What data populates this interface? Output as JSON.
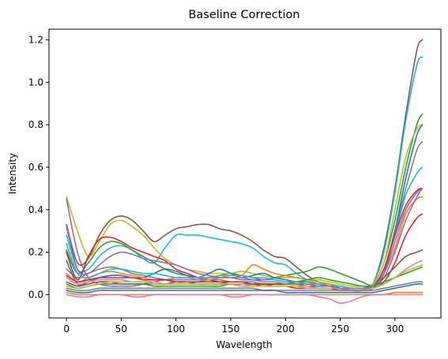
{
  "chart_data": {
    "type": "line",
    "title": "Baseline Correction",
    "xlabel": "Wavelength",
    "ylabel": "Intensity",
    "xlim": [
      -16,
      342
    ],
    "ylim": [
      -0.11,
      1.25
    ],
    "xticks": [
      0,
      50,
      100,
      150,
      200,
      250,
      300
    ],
    "yticks": [
      0.0,
      0.2,
      0.4,
      0.6,
      0.8,
      1.0,
      1.2
    ],
    "xtick_labels": [
      "0",
      "50",
      "100",
      "150",
      "200",
      "250",
      "300"
    ],
    "ytick_labels": [
      "0.0",
      "0.2",
      "0.4",
      "0.6",
      "0.8",
      "1.0",
      "1.2"
    ],
    "grid": false,
    "legend": "none",
    "x": [
      0,
      10,
      20,
      30,
      40,
      50,
      60,
      70,
      80,
      90,
      100,
      110,
      120,
      130,
      140,
      150,
      160,
      170,
      180,
      190,
      200,
      210,
      220,
      230,
      240,
      250,
      260,
      270,
      280,
      290,
      300,
      310,
      320,
      325
    ],
    "series": [
      {
        "color": "#8c564b",
        "values": [
          0.33,
          0.15,
          0.17,
          0.28,
          0.35,
          0.37,
          0.35,
          0.3,
          0.25,
          0.28,
          0.31,
          0.32,
          0.33,
          0.33,
          0.31,
          0.3,
          0.28,
          0.25,
          0.21,
          0.18,
          0.17,
          0.13,
          0.09,
          0.06,
          0.05,
          0.03,
          0.02,
          0.02,
          0.05,
          0.22,
          0.5,
          0.85,
          1.15,
          1.2
        ]
      },
      {
        "color": "#17becf",
        "values": [
          0.28,
          0.12,
          0.12,
          0.18,
          0.22,
          0.23,
          0.21,
          0.17,
          0.15,
          0.22,
          0.28,
          0.28,
          0.28,
          0.27,
          0.26,
          0.25,
          0.24,
          0.22,
          0.18,
          0.15,
          0.14,
          0.1,
          0.07,
          0.06,
          0.04,
          0.03,
          0.02,
          0.02,
          0.05,
          0.2,
          0.48,
          0.82,
          1.08,
          1.12
        ]
      },
      {
        "color": "#2ca02c",
        "values": [
          0.21,
          0.1,
          0.15,
          0.22,
          0.25,
          0.24,
          0.21,
          0.18,
          0.15,
          0.12,
          0.1,
          0.09,
          0.08,
          0.08,
          0.09,
          0.1,
          0.09,
          0.08,
          0.07,
          0.08,
          0.09,
          0.1,
          0.11,
          0.13,
          0.12,
          0.1,
          0.08,
          0.06,
          0.05,
          0.15,
          0.35,
          0.6,
          0.8,
          0.85
        ]
      },
      {
        "color": "#7f7f7f",
        "values": [
          0.12,
          0.08,
          0.1,
          0.12,
          0.13,
          0.12,
          0.1,
          0.09,
          0.08,
          0.07,
          0.06,
          0.06,
          0.06,
          0.07,
          0.07,
          0.06,
          0.06,
          0.06,
          0.05,
          0.05,
          0.05,
          0.05,
          0.04,
          0.04,
          0.04,
          0.03,
          0.03,
          0.03,
          0.04,
          0.12,
          0.3,
          0.5,
          0.68,
          0.72
        ]
      },
      {
        "color": "#bcbd22",
        "values": [
          0.46,
          0.3,
          0.18,
          0.25,
          0.33,
          0.35,
          0.32,
          0.28,
          0.22,
          0.17,
          0.14,
          0.12,
          0.11,
          0.1,
          0.1,
          0.1,
          0.11,
          0.1,
          0.09,
          0.08,
          0.08,
          0.08,
          0.07,
          0.07,
          0.06,
          0.05,
          0.04,
          0.04,
          0.05,
          0.15,
          0.4,
          0.65,
          0.78,
          0.8
        ]
      },
      {
        "color": "#d62728",
        "values": [
          0.2,
          0.07,
          0.18,
          0.26,
          0.27,
          0.25,
          0.22,
          0.2,
          0.18,
          0.16,
          0.12,
          0.1,
          0.08,
          0.07,
          0.06,
          0.05,
          0.05,
          0.05,
          0.04,
          0.04,
          0.04,
          0.03,
          0.03,
          0.03,
          0.03,
          0.02,
          0.02,
          0.02,
          0.03,
          0.06,
          0.15,
          0.28,
          0.36,
          0.38
        ]
      },
      {
        "color": "#1f77b4",
        "values": [
          0.16,
          0.05,
          0.06,
          0.08,
          0.09,
          0.09,
          0.08,
          0.08,
          0.1,
          0.12,
          0.11,
          0.09,
          0.08,
          0.1,
          0.12,
          0.1,
          0.08,
          0.09,
          0.1,
          0.08,
          0.07,
          0.06,
          0.06,
          0.05,
          0.04,
          0.03,
          0.02,
          0.02,
          0.03,
          0.1,
          0.3,
          0.55,
          0.75,
          0.8
        ]
      },
      {
        "color": "#ff7f0e",
        "values": [
          0.1,
          0.06,
          0.08,
          0.1,
          0.11,
          0.1,
          0.09,
          0.08,
          0.07,
          0.07,
          0.08,
          0.08,
          0.07,
          0.07,
          0.08,
          0.09,
          0.09,
          0.14,
          0.12,
          0.1,
          0.09,
          0.08,
          0.07,
          0.06,
          0.05,
          0.04,
          0.03,
          0.03,
          0.04,
          0.1,
          0.22,
          0.38,
          0.45,
          0.46
        ]
      },
      {
        "color": "#9467bd",
        "values": [
          0.45,
          0.2,
          0.08,
          0.05,
          0.04,
          0.04,
          0.04,
          0.05,
          0.06,
          0.07,
          0.07,
          0.07,
          0.07,
          0.08,
          0.08,
          0.08,
          0.08,
          0.07,
          0.07,
          0.07,
          0.06,
          0.06,
          0.05,
          0.05,
          0.04,
          0.04,
          0.03,
          0.03,
          0.04,
          0.08,
          0.2,
          0.35,
          0.46,
          0.5
        ]
      },
      {
        "color": "#e377c2",
        "values": [
          0.08,
          0.05,
          0.06,
          0.07,
          0.07,
          0.07,
          0.06,
          0.06,
          0.06,
          0.05,
          0.05,
          0.05,
          0.05,
          0.05,
          0.05,
          0.05,
          0.04,
          0.04,
          0.04,
          0.04,
          0.04,
          0.04,
          0.03,
          0.03,
          0.03,
          0.03,
          0.02,
          0.02,
          0.03,
          0.05,
          0.08,
          0.12,
          0.15,
          0.16
        ]
      },
      {
        "color": "#8c564b",
        "values": [
          0.06,
          0.04,
          0.05,
          0.06,
          0.06,
          0.05,
          0.05,
          0.05,
          0.05,
          0.05,
          0.06,
          0.06,
          0.05,
          0.05,
          0.05,
          0.05,
          0.05,
          0.05,
          0.05,
          0.04,
          0.04,
          0.04,
          0.04,
          0.03,
          0.03,
          0.03,
          0.03,
          0.03,
          0.04,
          0.08,
          0.13,
          0.18,
          0.2,
          0.21
        ]
      },
      {
        "color": "#17becf",
        "values": [
          0.24,
          0.1,
          0.08,
          0.1,
          0.12,
          0.12,
          0.11,
          0.1,
          0.1,
          0.09,
          0.08,
          0.08,
          0.08,
          0.08,
          0.09,
          0.09,
          0.09,
          0.08,
          0.08,
          0.07,
          0.06,
          0.06,
          0.05,
          0.05,
          0.04,
          0.04,
          0.03,
          0.03,
          0.04,
          0.12,
          0.28,
          0.47,
          0.57,
          0.6
        ]
      },
      {
        "color": "#2ca02c",
        "values": [
          0.05,
          0.03,
          0.04,
          0.05,
          0.05,
          0.05,
          0.05,
          0.05,
          0.04,
          0.04,
          0.04,
          0.04,
          0.04,
          0.04,
          0.04,
          0.05,
          0.05,
          0.05,
          0.05,
          0.05,
          0.05,
          0.06,
          0.07,
          0.08,
          0.07,
          0.06,
          0.05,
          0.04,
          0.04,
          0.06,
          0.08,
          0.1,
          0.12,
          0.13
        ]
      },
      {
        "color": "#d62728",
        "values": [
          0.09,
          0.06,
          0.07,
          0.08,
          0.08,
          0.08,
          0.08,
          0.07,
          0.07,
          0.07,
          0.06,
          0.06,
          0.06,
          0.06,
          0.06,
          0.06,
          0.06,
          0.05,
          0.05,
          0.05,
          0.05,
          0.05,
          0.04,
          0.04,
          0.04,
          0.03,
          0.03,
          0.03,
          0.04,
          0.12,
          0.28,
          0.42,
          0.49,
          0.5
        ]
      },
      {
        "color": "#7f7f7f",
        "values": [
          0.03,
          0.02,
          0.02,
          0.03,
          0.03,
          0.03,
          0.03,
          0.03,
          0.03,
          0.03,
          0.03,
          0.03,
          0.03,
          0.03,
          0.03,
          0.03,
          0.03,
          0.03,
          0.02,
          0.02,
          0.02,
          0.02,
          0.02,
          0.02,
          0.02,
          0.02,
          0.02,
          0.02,
          0.02,
          0.03,
          0.04,
          0.05,
          0.06,
          0.06
        ]
      },
      {
        "color": "#bcbd22",
        "values": [
          0.04,
          0.03,
          0.04,
          0.05,
          0.06,
          0.06,
          0.06,
          0.06,
          0.05,
          0.05,
          0.05,
          0.05,
          0.05,
          0.05,
          0.05,
          0.05,
          0.05,
          0.04,
          0.04,
          0.04,
          0.04,
          0.04,
          0.04,
          0.03,
          0.03,
          0.03,
          0.03,
          0.03,
          0.03,
          0.05,
          0.08,
          0.11,
          0.13,
          0.14
        ]
      },
      {
        "color": "#1f77b4",
        "values": [
          0.02,
          0.01,
          0.01,
          0.02,
          0.02,
          0.02,
          0.02,
          0.02,
          0.02,
          0.02,
          0.02,
          0.02,
          0.02,
          0.02,
          0.02,
          0.02,
          0.02,
          0.02,
          0.02,
          0.02,
          0.01,
          0.01,
          0.01,
          0.01,
          0.01,
          0.01,
          0.01,
          0.01,
          0.01,
          0.02,
          0.03,
          0.04,
          0.05,
          0.05
        ]
      },
      {
        "color": "#ff7f0e",
        "values": [
          0.01,
          0.0,
          0.0,
          0.0,
          0.0,
          0.0,
          0.0,
          0.0,
          0.0,
          0.0,
          0.0,
          0.0,
          0.0,
          0.0,
          0.0,
          0.0,
          0.0,
          0.0,
          0.0,
          0.0,
          0.0,
          0.0,
          0.0,
          0.0,
          0.0,
          0.0,
          0.0,
          0.0,
          0.0,
          0.0,
          0.01,
          0.01,
          0.01,
          0.01
        ]
      },
      {
        "color": "#9467bd",
        "values": [
          0.32,
          0.12,
          0.1,
          0.14,
          0.18,
          0.2,
          0.19,
          0.17,
          0.16,
          0.15,
          0.14,
          0.12,
          0.1,
          0.09,
          0.08,
          0.08,
          0.07,
          0.07,
          0.06,
          0.06,
          0.05,
          0.05,
          0.05,
          0.04,
          0.04,
          0.03,
          0.03,
          0.03,
          0.04,
          0.1,
          0.25,
          0.4,
          0.48,
          0.5
        ]
      },
      {
        "color": "#e377c2",
        "values": [
          0.0,
          -0.01,
          -0.01,
          0.0,
          0.0,
          0.0,
          -0.01,
          -0.01,
          0.0,
          0.0,
          0.0,
          0.0,
          0.0,
          0.0,
          0.0,
          -0.01,
          -0.01,
          0.0,
          0.0,
          0.0,
          0.0,
          0.0,
          0.0,
          -0.01,
          -0.02,
          -0.04,
          -0.03,
          -0.01,
          0.0,
          0.0,
          0.0,
          0.0,
          0.0,
          0.0
        ]
      }
    ]
  }
}
